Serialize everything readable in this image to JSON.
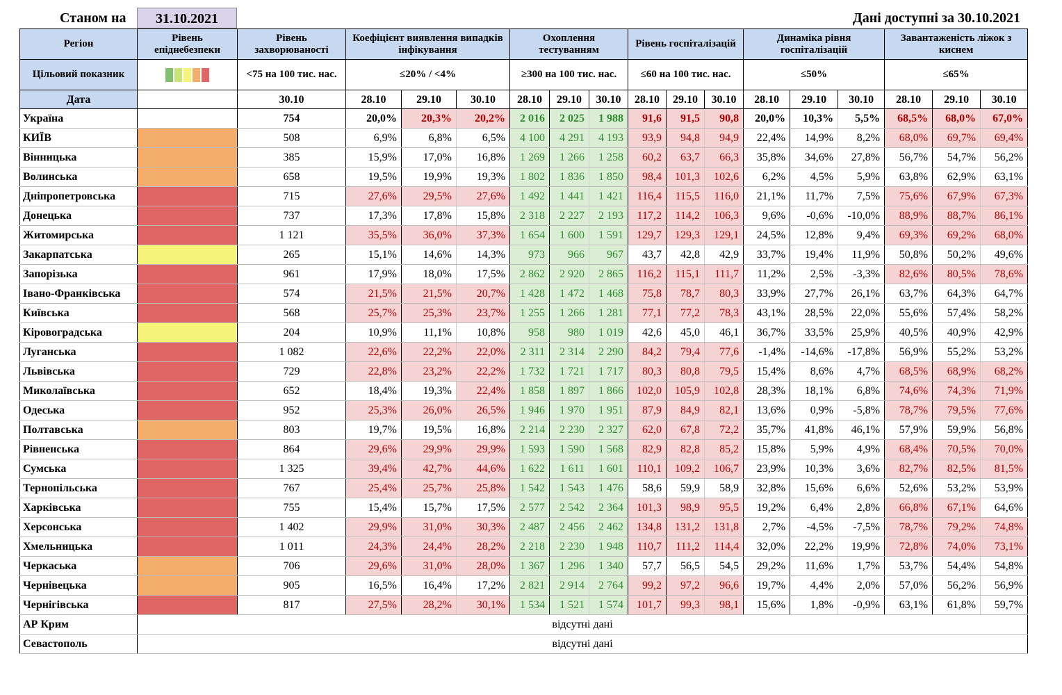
{
  "header": {
    "as_of_label": "Станом на",
    "as_of_date": "31.10.2021",
    "available": "Дані доступні за 30.10.2021"
  },
  "table": {
    "columns": [
      "Регіон",
      "Рівень епіднебезпеки",
      "Рівень захворюваності",
      "Коефіцієнт виявлення випадків інфікування",
      "Охоплення тестуванням",
      "Рівень госпіталізацій",
      "Динаміка рівня госпіталізацій",
      "Завантаженість ліжок з киснем"
    ],
    "target_label": "Цільовий показник",
    "scale_colors": [
      "#7fbf6f",
      "#c9e27a",
      "#f4f47a",
      "#f5ad6b",
      "#e06666"
    ],
    "targets": [
      "<75 на 100 тис. нас.",
      "≤20% / <4%",
      "≥300 на 100 тис. нас.",
      "≤60 на 100 тис. нас.",
      "≤50%",
      "≤65%"
    ],
    "date_label": "Дата",
    "incidence_date": "30.10",
    "dates": [
      "28.10",
      "29.10",
      "30.10"
    ],
    "level_colors": {
      "orange": "#f5ad6b",
      "red": "#e06666",
      "yellow": "#f4f47a"
    },
    "rows": [
      {
        "region": "Україна",
        "level": null,
        "bold": true,
        "incidence": "754",
        "values": [
          "20,0%",
          "20,3%",
          "20,2%",
          "2 016",
          "2 025",
          "1 988",
          "91,6",
          "91,5",
          "90,8",
          "20,0%",
          "10,3%",
          "5,5%",
          "68,5%",
          "68,0%",
          "67,0%"
        ],
        "highlight": ".rrgggrrr...rrr"
      },
      {
        "region": "КИЇВ",
        "level": "orange",
        "incidence": "508",
        "values": [
          "6,9%",
          "6,8%",
          "6,5%",
          "4 100",
          "4 291",
          "4 193",
          "93,9",
          "94,8",
          "94,9",
          "22,4%",
          "14,9%",
          "8,2%",
          "68,0%",
          "69,7%",
          "69,4%"
        ],
        "highlight": "...gggrrr...rrr"
      },
      {
        "region": "Вінницька",
        "level": "orange",
        "incidence": "385",
        "values": [
          "15,9%",
          "17,0%",
          "16,8%",
          "1 269",
          "1 266",
          "1 258",
          "60,2",
          "63,7",
          "66,3",
          "35,8%",
          "34,6%",
          "27,8%",
          "56,7%",
          "54,7%",
          "56,2%"
        ],
        "highlight": "...gggrrr......"
      },
      {
        "region": "Волинська",
        "level": "orange",
        "incidence": "658",
        "values": [
          "19,5%",
          "19,9%",
          "19,3%",
          "1 802",
          "1 836",
          "1 850",
          "98,4",
          "101,3",
          "102,6",
          "6,2%",
          "4,5%",
          "5,9%",
          "63,8%",
          "62,9%",
          "63,1%"
        ],
        "highlight": "...gggrrr......"
      },
      {
        "region": "Дніпропетровська",
        "level": "red",
        "incidence": "715",
        "values": [
          "27,6%",
          "29,5%",
          "27,6%",
          "1 492",
          "1 441",
          "1 421",
          "116,4",
          "115,5",
          "116,0",
          "21,1%",
          "11,7%",
          "7,5%",
          "75,6%",
          "67,9%",
          "67,3%"
        ],
        "highlight": "rrrgggrrr...rrr"
      },
      {
        "region": "Донецька",
        "level": "red",
        "incidence": "737",
        "values": [
          "17,3%",
          "17,8%",
          "15,8%",
          "2 318",
          "2 227",
          "2 193",
          "117,2",
          "114,2",
          "106,3",
          "9,6%",
          "-0,6%",
          "-10,0%",
          "88,9%",
          "88,7%",
          "86,1%"
        ],
        "highlight": "...gggrrr...rrr"
      },
      {
        "region": "Житомирська",
        "level": "red",
        "incidence": "1 121",
        "values": [
          "35,5%",
          "36,0%",
          "37,3%",
          "1 654",
          "1 600",
          "1 591",
          "129,7",
          "129,3",
          "129,1",
          "24,5%",
          "12,8%",
          "9,4%",
          "69,3%",
          "69,2%",
          "68,0%"
        ],
        "highlight": "rrrgggrrr...rrr"
      },
      {
        "region": "Закарпатська",
        "level": "yellow",
        "incidence": "265",
        "values": [
          "15,1%",
          "14,6%",
          "14,3%",
          "973",
          "966",
          "967",
          "43,7",
          "42,8",
          "42,9",
          "33,7%",
          "19,4%",
          "11,9%",
          "50,8%",
          "50,2%",
          "49,6%"
        ],
        "highlight": "...ggg........."
      },
      {
        "region": "Запорізька",
        "level": "red",
        "incidence": "961",
        "values": [
          "17,9%",
          "18,0%",
          "17,5%",
          "2 862",
          "2 920",
          "2 865",
          "116,2",
          "115,1",
          "111,7",
          "11,2%",
          "2,5%",
          "-3,3%",
          "82,6%",
          "80,5%",
          "78,6%"
        ],
        "highlight": "...gggrrr...rrr"
      },
      {
        "region": "Івано-Франківська",
        "level": "red",
        "incidence": "574",
        "values": [
          "21,5%",
          "21,5%",
          "20,7%",
          "1 428",
          "1 472",
          "1 468",
          "75,8",
          "78,7",
          "80,3",
          "33,9%",
          "27,7%",
          "26,1%",
          "63,7%",
          "64,3%",
          "64,7%"
        ],
        "highlight": "rrrgggrrr......"
      },
      {
        "region": "Київська",
        "level": "red",
        "incidence": "568",
        "values": [
          "25,7%",
          "25,3%",
          "23,7%",
          "1 255",
          "1 266",
          "1 281",
          "77,1",
          "77,2",
          "78,3",
          "43,1%",
          "28,5%",
          "22,0%",
          "55,6%",
          "57,4%",
          "58,2%"
        ],
        "highlight": "rrrgggrrr......"
      },
      {
        "region": "Кіровоградська",
        "level": "yellow",
        "incidence": "204",
        "values": [
          "10,9%",
          "11,1%",
          "10,8%",
          "958",
          "980",
          "1 019",
          "42,6",
          "45,0",
          "46,1",
          "36,7%",
          "33,5%",
          "25,9%",
          "40,5%",
          "40,9%",
          "42,9%"
        ],
        "highlight": "...ggg........."
      },
      {
        "region": "Луганська",
        "level": "red",
        "incidence": "1 082",
        "values": [
          "22,6%",
          "22,2%",
          "22,0%",
          "2 311",
          "2 314",
          "2 290",
          "84,2",
          "79,4",
          "77,6",
          "-1,4%",
          "-14,6%",
          "-17,8%",
          "56,9%",
          "55,2%",
          "53,2%"
        ],
        "highlight": "rrrgggrrr......"
      },
      {
        "region": "Львівська",
        "level": "red",
        "incidence": "729",
        "values": [
          "22,8%",
          "23,2%",
          "22,2%",
          "1 732",
          "1 721",
          "1 717",
          "80,3",
          "80,8",
          "79,5",
          "15,4%",
          "8,6%",
          "4,7%",
          "68,5%",
          "68,9%",
          "68,2%"
        ],
        "highlight": "rrrgggrrr...rrr"
      },
      {
        "region": "Миколаївська",
        "level": "red",
        "incidence": "652",
        "values": [
          "18,4%",
          "19,3%",
          "22,4%",
          "1 858",
          "1 897",
          "1 866",
          "102,0",
          "105,9",
          "102,8",
          "28,3%",
          "18,1%",
          "6,8%",
          "74,6%",
          "74,3%",
          "71,9%"
        ],
        "highlight": "..rgggrrr...rrr"
      },
      {
        "region": "Одеська",
        "level": "red",
        "incidence": "952",
        "values": [
          "25,3%",
          "26,0%",
          "26,5%",
          "1 946",
          "1 970",
          "1 951",
          "87,9",
          "84,9",
          "82,1",
          "13,6%",
          "0,9%",
          "-5,8%",
          "78,7%",
          "79,5%",
          "77,6%"
        ],
        "highlight": "rrrgggrrr...rrr"
      },
      {
        "region": "Полтавська",
        "level": "orange",
        "incidence": "803",
        "values": [
          "19,7%",
          "19,5%",
          "16,8%",
          "2 214",
          "2 230",
          "2 327",
          "62,0",
          "67,8",
          "72,2",
          "35,7%",
          "41,8%",
          "46,1%",
          "57,9%",
          "59,9%",
          "56,8%"
        ],
        "highlight": "...gggrrr......"
      },
      {
        "region": "Рівненська",
        "level": "red",
        "incidence": "864",
        "values": [
          "29,6%",
          "29,9%",
          "29,9%",
          "1 593",
          "1 590",
          "1 568",
          "82,9",
          "82,8",
          "85,2",
          "15,8%",
          "5,9%",
          "4,9%",
          "68,4%",
          "70,5%",
          "70,0%"
        ],
        "highlight": "rrrgggrrr...rrr"
      },
      {
        "region": "Сумська",
        "level": "red",
        "incidence": "1 325",
        "values": [
          "39,4%",
          "42,7%",
          "44,6%",
          "1 622",
          "1 611",
          "1 601",
          "110,1",
          "109,2",
          "106,7",
          "23,9%",
          "10,3%",
          "3,6%",
          "82,7%",
          "82,5%",
          "81,5%"
        ],
        "highlight": "rrrgggrrr...rrr"
      },
      {
        "region": "Тернопільська",
        "level": "red",
        "incidence": "767",
        "values": [
          "25,4%",
          "25,7%",
          "25,8%",
          "1 542",
          "1 543",
          "1 476",
          "58,6",
          "59,9",
          "58,9",
          "32,8%",
          "15,6%",
          "6,6%",
          "52,6%",
          "53,2%",
          "53,9%"
        ],
        "highlight": "rrrggg........."
      },
      {
        "region": "Харківська",
        "level": "red",
        "incidence": "755",
        "values": [
          "15,4%",
          "15,7%",
          "17,5%",
          "2 577",
          "2 542",
          "2 364",
          "101,3",
          "98,9",
          "95,5",
          "19,2%",
          "6,4%",
          "2,8%",
          "66,8%",
          "67,1%",
          "64,6%"
        ],
        "highlight": "...gggrrr...rr."
      },
      {
        "region": "Херсонська",
        "level": "red",
        "incidence": "1 402",
        "values": [
          "29,9%",
          "31,0%",
          "30,3%",
          "2 487",
          "2 456",
          "2 462",
          "134,8",
          "131,2",
          "131,8",
          "2,7%",
          "-4,5%",
          "-7,5%",
          "78,7%",
          "79,2%",
          "74,8%"
        ],
        "highlight": "rrrgggrrr...rrr"
      },
      {
        "region": "Хмельницька",
        "level": "red",
        "incidence": "1 011",
        "values": [
          "24,3%",
          "24,4%",
          "28,2%",
          "2 218",
          "2 230",
          "1 948",
          "110,7",
          "111,2",
          "114,4",
          "32,0%",
          "22,2%",
          "19,9%",
          "72,8%",
          "74,0%",
          "73,1%"
        ],
        "highlight": "rrrgggrrr...rrr"
      },
      {
        "region": "Черкаська",
        "level": "orange",
        "incidence": "706",
        "values": [
          "29,6%",
          "31,0%",
          "28,0%",
          "1 367",
          "1 296",
          "1 340",
          "57,7",
          "56,5",
          "54,5",
          "29,2%",
          "11,6%",
          "1,7%",
          "53,7%",
          "54,4%",
          "54,8%"
        ],
        "highlight": "rrrggg........."
      },
      {
        "region": "Чернівецька",
        "level": "orange",
        "incidence": "905",
        "values": [
          "16,5%",
          "16,4%",
          "17,2%",
          "2 821",
          "2 914",
          "2 764",
          "99,2",
          "97,2",
          "96,6",
          "19,7%",
          "4,4%",
          "2,0%",
          "57,0%",
          "56,2%",
          "56,9%"
        ],
        "highlight": "...gggrrr......"
      },
      {
        "region": "Чернігівська",
        "level": "red",
        "incidence": "817",
        "values": [
          "27,5%",
          "28,2%",
          "30,1%",
          "1 534",
          "1 521",
          "1 574",
          "101,7",
          "99,3",
          "98,1",
          "15,6%",
          "1,8%",
          "-0,9%",
          "63,1%",
          "61,8%",
          "59,7%"
        ],
        "highlight": "rrrgggrrr......"
      }
    ],
    "missing": [
      {
        "region": "АР Крим",
        "note": "відсутні дані"
      },
      {
        "region": "Севастополь",
        "note": "відсутні дані"
      }
    ]
  }
}
